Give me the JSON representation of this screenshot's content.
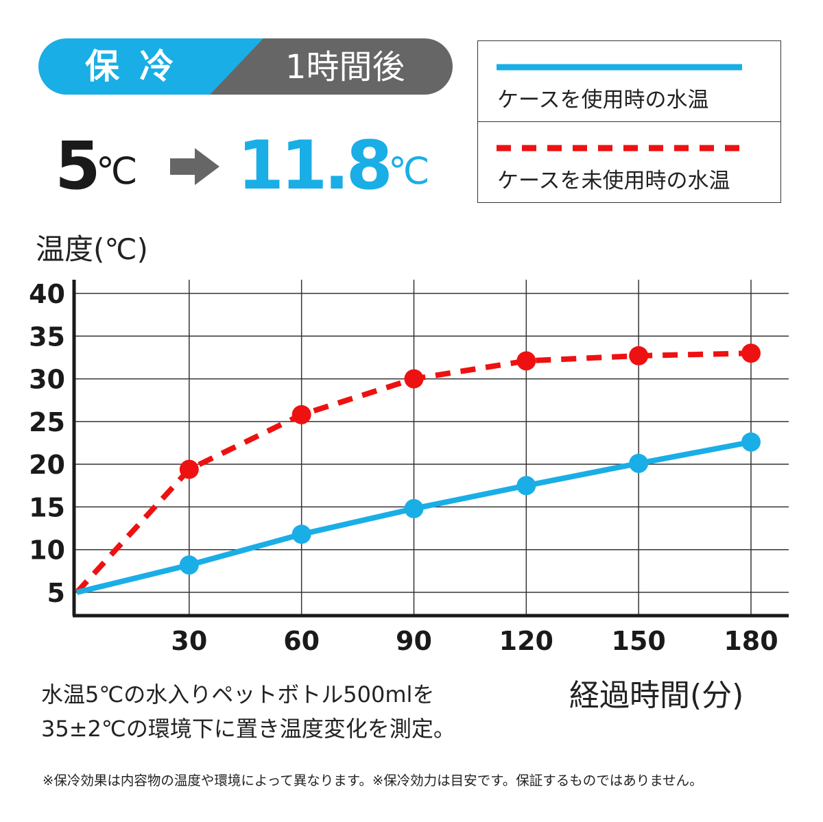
{
  "header": {
    "badge_left": "保 冷",
    "badge_right": "1時間後",
    "badge_left_color": "#1aaee6",
    "badge_right_color": "#666666"
  },
  "result": {
    "start_value": "5",
    "start_unit": "℃",
    "end_value": "11.8",
    "end_unit": "℃",
    "arrow_icon": "arrow-right-icon",
    "accent_color": "#1aaee6"
  },
  "legend": {
    "items": [
      {
        "label": "ケースを使用時の水温",
        "style": "solid",
        "color": "#1aaee6"
      },
      {
        "label": "ケースを未使用時の水温",
        "style": "dashed",
        "color": "#ee1111"
      }
    ]
  },
  "chart_data": {
    "type": "line",
    "title": "",
    "ylabel": "温度(℃)",
    "xlabel": "経過時間(分)",
    "x": [
      0,
      30,
      60,
      90,
      120,
      150,
      180
    ],
    "x_ticks": [
      "30",
      "60",
      "90",
      "120",
      "150",
      "180"
    ],
    "y_ticks": [
      "5",
      "10",
      "15",
      "20",
      "25",
      "30",
      "35",
      "40"
    ],
    "xlim": [
      0,
      180
    ],
    "ylim": [
      3,
      40
    ],
    "grid": true,
    "legend": "top-right",
    "series": [
      {
        "name": "ケースを使用時の水温",
        "style": "solid",
        "color": "#1aaee6",
        "values": [
          5,
          8.2,
          11.8,
          14.8,
          17.5,
          20.1,
          22.6
        ]
      },
      {
        "name": "ケースを未使用時の水温",
        "style": "dashed",
        "color": "#ee1111",
        "values": [
          5,
          19.4,
          25.8,
          30.0,
          32.1,
          32.7,
          33.0
        ]
      }
    ]
  },
  "notes": {
    "line1": "水温5℃の水入りペットボトル500mlを",
    "line2": "35±2℃の環境下に置き温度変化を測定。",
    "disclaimer": "※保冷効果は内容物の温度や環境によって異なります。※保冷効力は目安です。保証するものではありません。"
  }
}
